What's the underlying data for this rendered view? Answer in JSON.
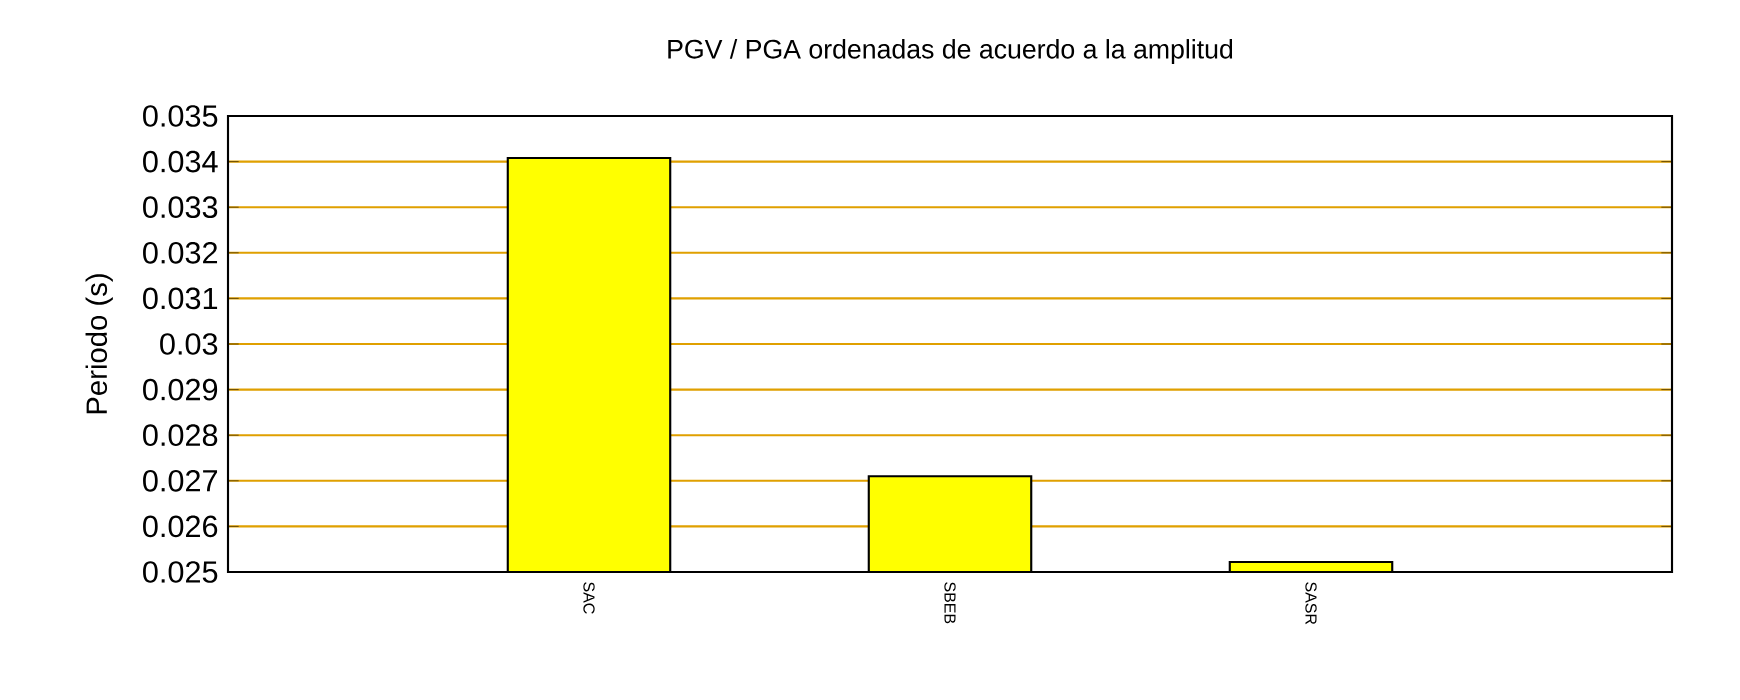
{
  "chart_data": {
    "type": "bar",
    "title": "PGV / PGA ordenadas de acuerdo a la amplitud",
    "ylabel": "Periodo (s)",
    "categories": [
      "SAC",
      "SBEB",
      "SASR"
    ],
    "values": [
      0.03408,
      0.0271,
      0.02522
    ],
    "color": "#ffff00",
    "ylim": [
      0.025,
      0.035
    ],
    "yticks": [
      0.025,
      0.026,
      0.027,
      0.028,
      0.029,
      0.03,
      0.031,
      0.032,
      0.033,
      0.034,
      0.035
    ],
    "grid": "y"
  }
}
